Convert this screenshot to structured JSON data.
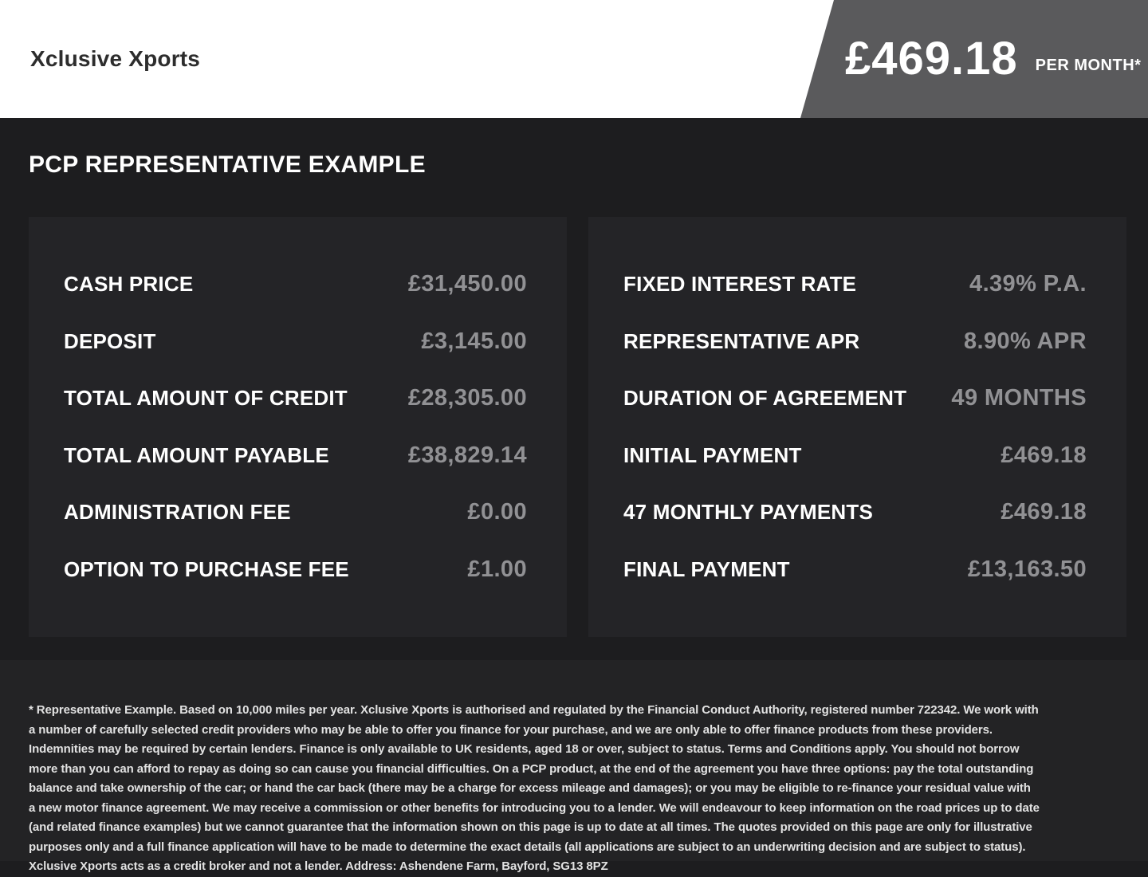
{
  "header": {
    "brand": "Xclusive Xports",
    "price": "£469.18",
    "price_suffix": "PER MONTH*"
  },
  "main": {
    "title": "PCP REPRESENTATIVE EXAMPLE",
    "left_panel": {
      "rows": [
        {
          "label": "CASH PRICE",
          "value": "£31,450.00"
        },
        {
          "label": "DEPOSIT",
          "value": "£3,145.00"
        },
        {
          "label": "TOTAL AMOUNT OF CREDIT",
          "value": "£28,305.00"
        },
        {
          "label": "TOTAL AMOUNT PAYABLE",
          "value": "£38,829.14"
        },
        {
          "label": "ADMINISTRATION FEE",
          "value": "£0.00"
        },
        {
          "label": "OPTION TO PURCHASE FEE",
          "value": "£1.00"
        }
      ]
    },
    "right_panel": {
      "rows": [
        {
          "label": "FIXED INTEREST RATE",
          "value": "4.39% P.A."
        },
        {
          "label": "REPRESENTATIVE APR",
          "value": "8.90% APR"
        },
        {
          "label": "DURATION OF AGREEMENT",
          "value": "49 MONTHS"
        },
        {
          "label": "INITIAL PAYMENT",
          "value": "£469.18"
        },
        {
          "label": "47 MONTHLY PAYMENTS",
          "value": "£469.18"
        },
        {
          "label": "FINAL PAYMENT",
          "value": "£13,163.50"
        }
      ]
    }
  },
  "footer": {
    "disclaimer": "* Representative Example. Based on 10,000 miles per year. Xclusive Xports is authorised and regulated by the Financial Conduct Authority, registered number 722342. We work with a number of carefully selected credit providers who may be able to offer you finance for your purchase, and we are only able to offer finance products from these providers. Indemnities may be required by certain lenders. Finance is only available to UK residents, aged 18 or over, subject to status. Terms and Conditions apply. You should not borrow more than you can afford to repay as doing so can cause you financial difficulties. On a PCP product, at the end of the agreement you have three options: pay the total outstanding balance and take ownership of the car; or hand the car back (there may be a charge for excess mileage and damages); or you may be eligible to re-finance your residual value with a new motor finance agreement. We may receive a commission or other benefits for introducing you to a lender. We will endeavour to keep information on the road prices up to date (and related finance examples) but we cannot guarantee that the information shown on this page is up to date at all times. The quotes provided on this page are only for illustrative purposes only and a full finance application will have to be made to determine the exact details (all applications are subject to an underwriting decision and are subject to status). Xclusive Xports acts as a credit broker and not a lender. Address: Ashendene Farm, Bayford, SG13 8PZ"
  },
  "colors": {
    "header_bg": "#ffffff",
    "badge_bg": "#5a5a5c",
    "page_bg": "#1d1d1f",
    "panel_bg": "#242427",
    "footer_bg": "#232325",
    "label_text": "#ffffff",
    "value_text": "#919194"
  }
}
